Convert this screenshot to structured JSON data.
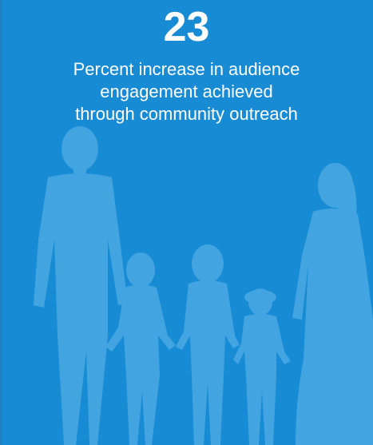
{
  "stat": {
    "value": "23",
    "caption": "Percent increase in audience engagement achieved through community outreach"
  },
  "colors": {
    "background": "#188bd5",
    "silhouette": "#4aa9e2",
    "text": "#ffffff"
  },
  "illustration": {
    "icon": "family-silhouette-icon"
  }
}
